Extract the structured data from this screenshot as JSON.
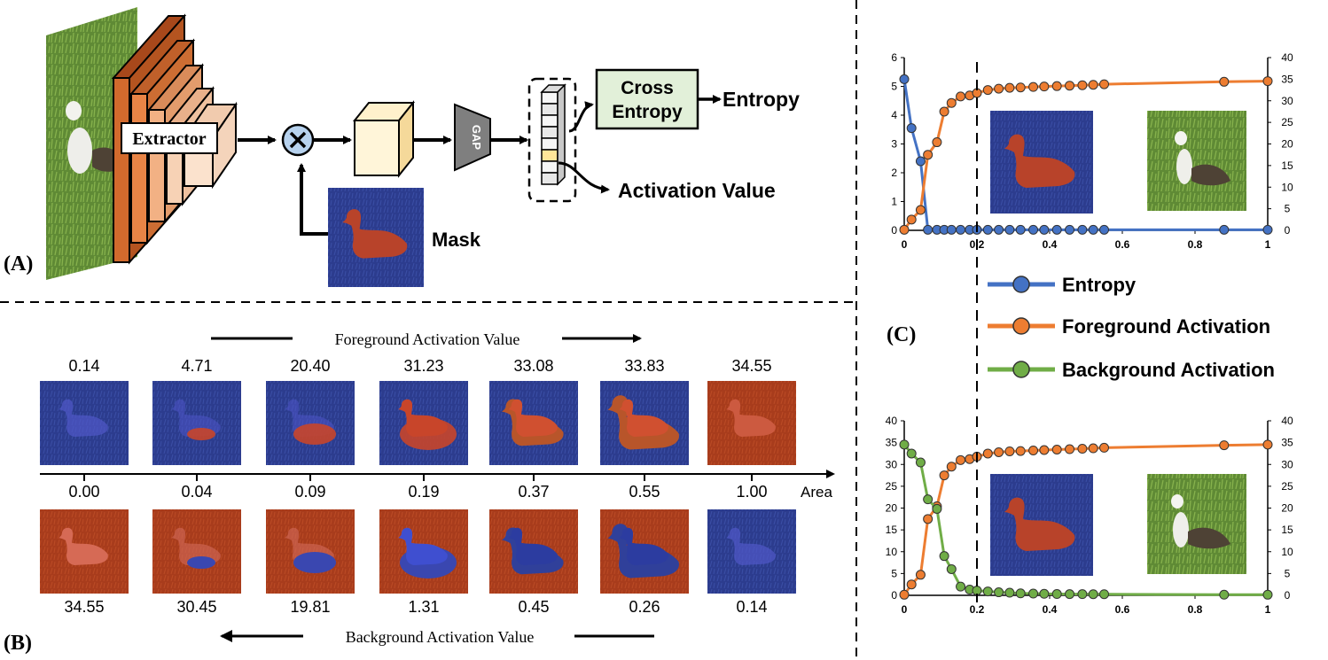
{
  "panel_a": {
    "label": "(A)",
    "extractor": "Extractor",
    "gap": "GAP",
    "cross_entropy_1": "Cross",
    "cross_entropy_2": "Entropy",
    "entropy_out": "Entropy",
    "activation_out": "Activation Value",
    "mask": "Mask"
  },
  "panel_b": {
    "label": "(B)",
    "fg_arrow": "Foreground Activation Value",
    "bg_arrow": "Background Activation Value",
    "area_label": "Area",
    "fg_values": [
      "0.14",
      "4.71",
      "20.40",
      "31.23",
      "33.08",
      "33.83",
      "34.55"
    ],
    "areas": [
      "0.00",
      "0.04",
      "0.09",
      "0.19",
      "0.37",
      "0.55",
      "1.00"
    ],
    "bg_values": [
      "34.55",
      "30.45",
      "19.81",
      "1.31",
      "0.45",
      "0.26",
      "0.14"
    ]
  },
  "panel_c": {
    "label": "(C)",
    "legend": [
      "Entropy",
      "Foreground Activation",
      "Background Activation"
    ],
    "colors": {
      "entropy": "#4472C4",
      "foreground": "#ED7D31",
      "background": "#70AD47"
    }
  },
  "chart_data": [
    {
      "type": "line",
      "xlim": [
        0,
        1
      ],
      "x_ticks": [
        "0",
        "0.2",
        "0.4",
        "0.6",
        "0.8",
        "1"
      ],
      "y_left_lim": [
        0,
        6
      ],
      "y_left_ticks": [
        "0",
        "1",
        "2",
        "3",
        "4",
        "5",
        "6"
      ],
      "y_right_lim": [
        0,
        40
      ],
      "y_right_ticks": [
        "0",
        "5",
        "10",
        "15",
        "20",
        "25",
        "30",
        "35",
        "40"
      ],
      "x": [
        0,
        0.02,
        0.045,
        0.065,
        0.09,
        0.11,
        0.13,
        0.155,
        0.18,
        0.2,
        0.23,
        0.26,
        0.29,
        0.32,
        0.355,
        0.385,
        0.42,
        0.455,
        0.49,
        0.52,
        0.55,
        0.88,
        1.0
      ],
      "series": [
        {
          "name": "Entropy",
          "axis": "left",
          "values": [
            5.25,
            3.55,
            2.4,
            0.02,
            0.02,
            0.02,
            0.02,
            0.02,
            0.02,
            0.02,
            0.02,
            0.02,
            0.02,
            0.02,
            0.02,
            0.02,
            0.02,
            0.02,
            0.02,
            0.02,
            0.02,
            0.02,
            0.02
          ]
        },
        {
          "name": "Foreground Activation",
          "axis": "right",
          "values": [
            0.14,
            2.5,
            4.71,
            17.5,
            20.4,
            27.5,
            29.5,
            31.0,
            31.23,
            31.8,
            32.5,
            32.8,
            33.0,
            33.08,
            33.2,
            33.3,
            33.4,
            33.5,
            33.6,
            33.7,
            33.83,
            34.4,
            34.55
          ]
        }
      ]
    },
    {
      "type": "line",
      "xlim": [
        0,
        1
      ],
      "x_ticks": [
        "0",
        "0.2",
        "0.4",
        "0.6",
        "0.8",
        "1"
      ],
      "y_left_lim": [
        0,
        40
      ],
      "y_left_ticks": [
        "0",
        "5",
        "10",
        "15",
        "20",
        "25",
        "30",
        "35",
        "40"
      ],
      "y_right_lim": [
        0,
        40
      ],
      "y_right_ticks": [
        "0",
        "5",
        "10",
        "15",
        "20",
        "25",
        "30",
        "35",
        "40"
      ],
      "x": [
        0,
        0.02,
        0.045,
        0.065,
        0.09,
        0.11,
        0.13,
        0.155,
        0.18,
        0.2,
        0.23,
        0.26,
        0.29,
        0.32,
        0.355,
        0.385,
        0.42,
        0.455,
        0.49,
        0.52,
        0.55,
        0.88,
        1.0
      ],
      "series": [
        {
          "name": "Foreground Activation",
          "axis": "left",
          "values": [
            0.14,
            2.5,
            4.71,
            17.5,
            20.4,
            27.5,
            29.5,
            31.0,
            31.23,
            31.8,
            32.5,
            32.8,
            33.0,
            33.08,
            33.2,
            33.3,
            33.4,
            33.5,
            33.6,
            33.7,
            33.83,
            34.4,
            34.55
          ]
        },
        {
          "name": "Background Activation",
          "axis": "left",
          "values": [
            34.55,
            32.5,
            30.45,
            22.0,
            19.81,
            9.0,
            6.0,
            2.0,
            1.31,
            1.1,
            0.9,
            0.7,
            0.6,
            0.45,
            0.4,
            0.35,
            0.3,
            0.28,
            0.27,
            0.26,
            0.26,
            0.15,
            0.14
          ]
        }
      ]
    }
  ]
}
